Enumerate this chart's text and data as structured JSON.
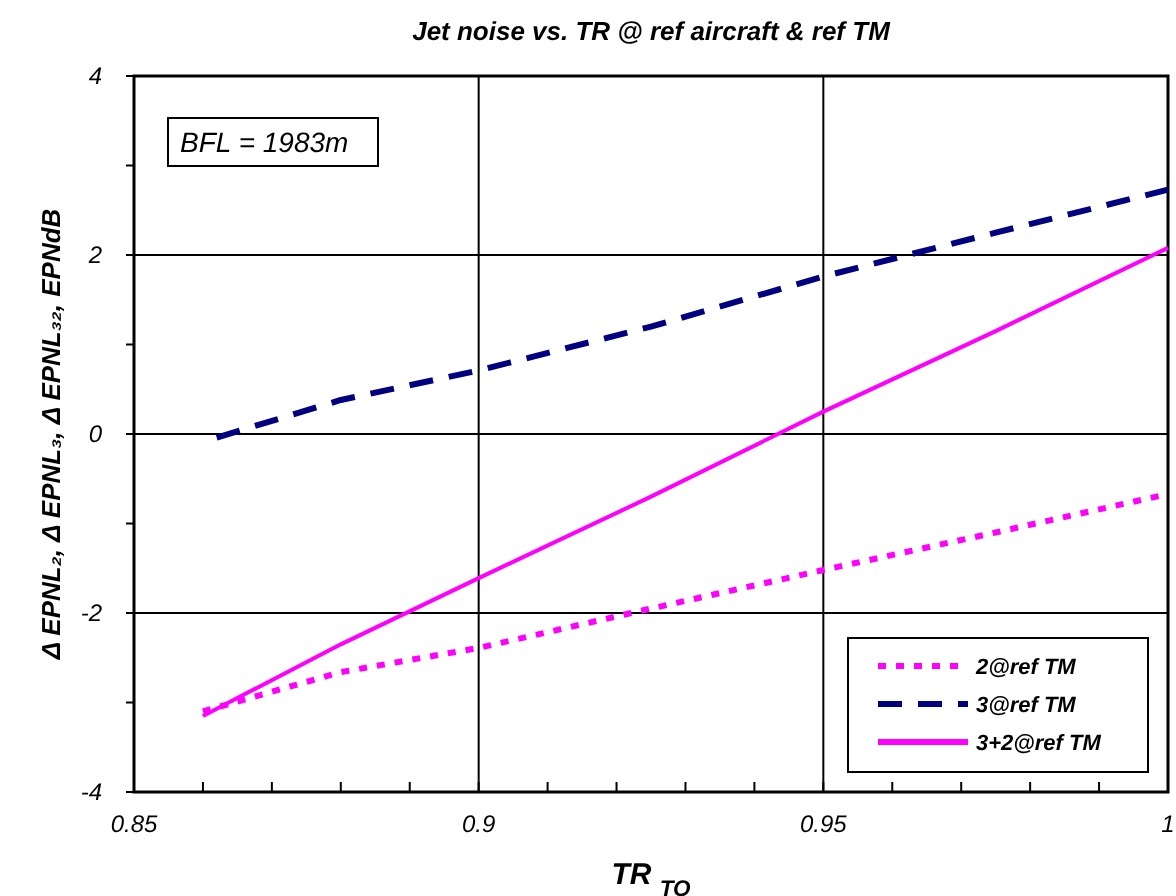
{
  "chart_data": {
    "type": "line",
    "title": "Jet noise vs. TR @ ref  aircraft & ref TM",
    "xlabel": "TR $_{TO}$",
    "ylabel": "Δ EPNL₂, Δ EPNL₃, Δ EPNL₃₂,  EPNdB",
    "annotations": [
      "BFL = 1983m"
    ],
    "x": [
      0.86,
      0.88,
      0.9,
      0.925,
      0.95,
      0.975,
      1.0
    ],
    "series": [
      {
        "name": "2@ref TM",
        "color": "#ff00ff",
        "line_style": "dotted",
        "values": [
          -3.1,
          -2.66,
          -2.39,
          -1.95,
          -1.52,
          -1.1,
          -0.67
        ]
      },
      {
        "name": "3@ref TM",
        "color": "#000080",
        "line_style": "dashed",
        "x": [
          0.862,
          0.88,
          0.9,
          0.925,
          0.95,
          0.975,
          1.0
        ],
        "values": [
          -0.04,
          0.38,
          0.71,
          1.2,
          1.76,
          2.25,
          2.73
        ]
      },
      {
        "name": "3+2@ref TM",
        "color": "#ff00ff",
        "line_style": "solid",
        "values": [
          -3.15,
          -2.35,
          -1.61,
          -0.7,
          0.25,
          1.15,
          2.08
        ]
      }
    ],
    "xlim": [
      0.85,
      1.0
    ],
    "xticks": [
      0.85,
      {
        "value": 0.86,
        "label": null
      },
      {
        "value": 0.87,
        "label": null
      },
      {
        "value": 0.88,
        "label": null
      },
      {
        "value": 0.89,
        "label": null
      },
      0.9,
      {
        "value": 0.91,
        "label": null
      },
      {
        "value": 0.92,
        "label": null
      },
      {
        "value": 0.93,
        "label": null
      },
      {
        "value": 0.94,
        "label": null
      },
      0.95,
      {
        "value": 0.96,
        "label": null
      },
      {
        "value": 0.97,
        "label": null
      },
      {
        "value": 0.98,
        "label": null
      },
      {
        "value": 0.99,
        "label": null
      },
      {
        "value": 1.0,
        "label": "1"
      }
    ],
    "ylim": [
      -4,
      4
    ],
    "yticks": [
      -4,
      {
        "value": -3,
        "label": null
      },
      -2,
      {
        "value": -1,
        "label": null
      },
      0,
      {
        "value": 1,
        "label": null
      },
      2,
      {
        "value": 3,
        "label": null
      },
      4
    ],
    "grid": true,
    "legend": "bottom right",
    "marker": "none"
  }
}
